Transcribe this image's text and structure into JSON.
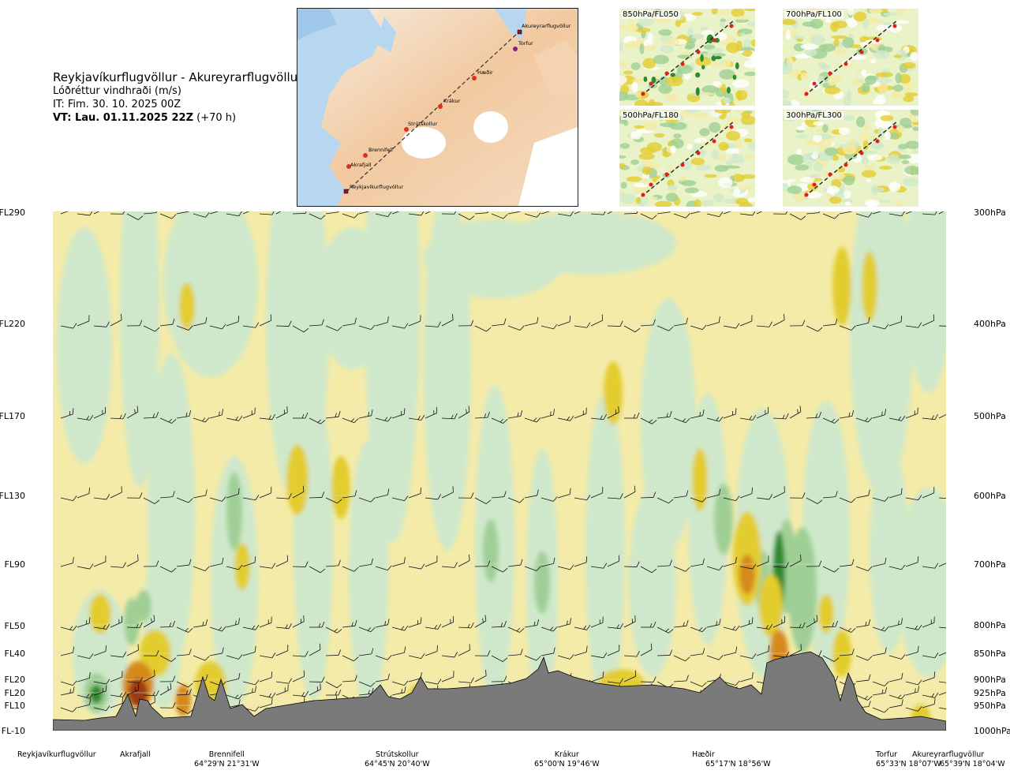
{
  "header": {
    "route": "Reykjavíkurflugvöllur - Akureyrarflugvöllur",
    "parameter": "Lóðréttur vindhraði (m/s)",
    "it": "IT: Fim. 30. 10. 2025 00Z",
    "vt_bold": "VT: Lau. 01.11.2025 22Z",
    "vt_offset": "(+70 h)"
  },
  "map": {
    "labels": [
      "Akureyrarflugvöllur",
      "Torfur",
      "Hæðir",
      "Krákur",
      "Strútskollur",
      "Brennifell",
      "Akrafjall",
      "Reykjavíkurflugvöllur"
    ]
  },
  "insets": [
    {
      "label": "850hPa/FL050"
    },
    {
      "label": "700hPa/FL100"
    },
    {
      "label": "500hPa/FL180"
    },
    {
      "label": "300hPa/FL300"
    }
  ],
  "levels": [
    {
      "fl": "FL290",
      "hpa": "300hPa"
    },
    {
      "fl": "FL220",
      "hpa": "400hPa"
    },
    {
      "fl": "FL170",
      "hpa": "500hPa"
    },
    {
      "fl": "FL130",
      "hpa": "600hPa"
    },
    {
      "fl": "FL90",
      "hpa": "700hPa"
    },
    {
      "fl": "FL50",
      "hpa": "800hPa"
    },
    {
      "fl": "FL40",
      "hpa": "850hPa"
    },
    {
      "fl": "FL20",
      "hpa": "900hPa"
    },
    {
      "fl": "FL20",
      "hpa": "925hPa"
    },
    {
      "fl": "FL10",
      "hpa": "950hPa"
    },
    {
      "fl": "FL-10",
      "hpa": "1000hPa"
    }
  ],
  "waypoints": [
    {
      "name": "Reykjavíkurflugvöllur",
      "coord": ""
    },
    {
      "name": "Akrafjall",
      "coord": ""
    },
    {
      "name": "Brennifell",
      "coord": "64°29'N 21°31'W"
    },
    {
      "name": "Strútskollur",
      "coord": "64°45'N 20°40'W"
    },
    {
      "name": "Krákur",
      "coord": "65°00'N 19°46'W"
    },
    {
      "name": "Hæðir",
      "coord": "65°17'N 18°56'W"
    },
    {
      "name": "Torfur",
      "coord": "65°33'N 18°07'W"
    },
    {
      "name": "Akureyrarflugvöllur",
      "coord": "65°39'N 18°04'W"
    }
  ],
  "colors": {
    "weak_up": "#f4eba8",
    "up": "#e3cc2e",
    "strong_up": "#d68a1a",
    "very_strong_up": "#9b3a12",
    "weak_down": "#cfe8cb",
    "down": "#9fcf95",
    "strong_down": "#2e8a2e",
    "terrain": "#7a7a7a"
  }
}
